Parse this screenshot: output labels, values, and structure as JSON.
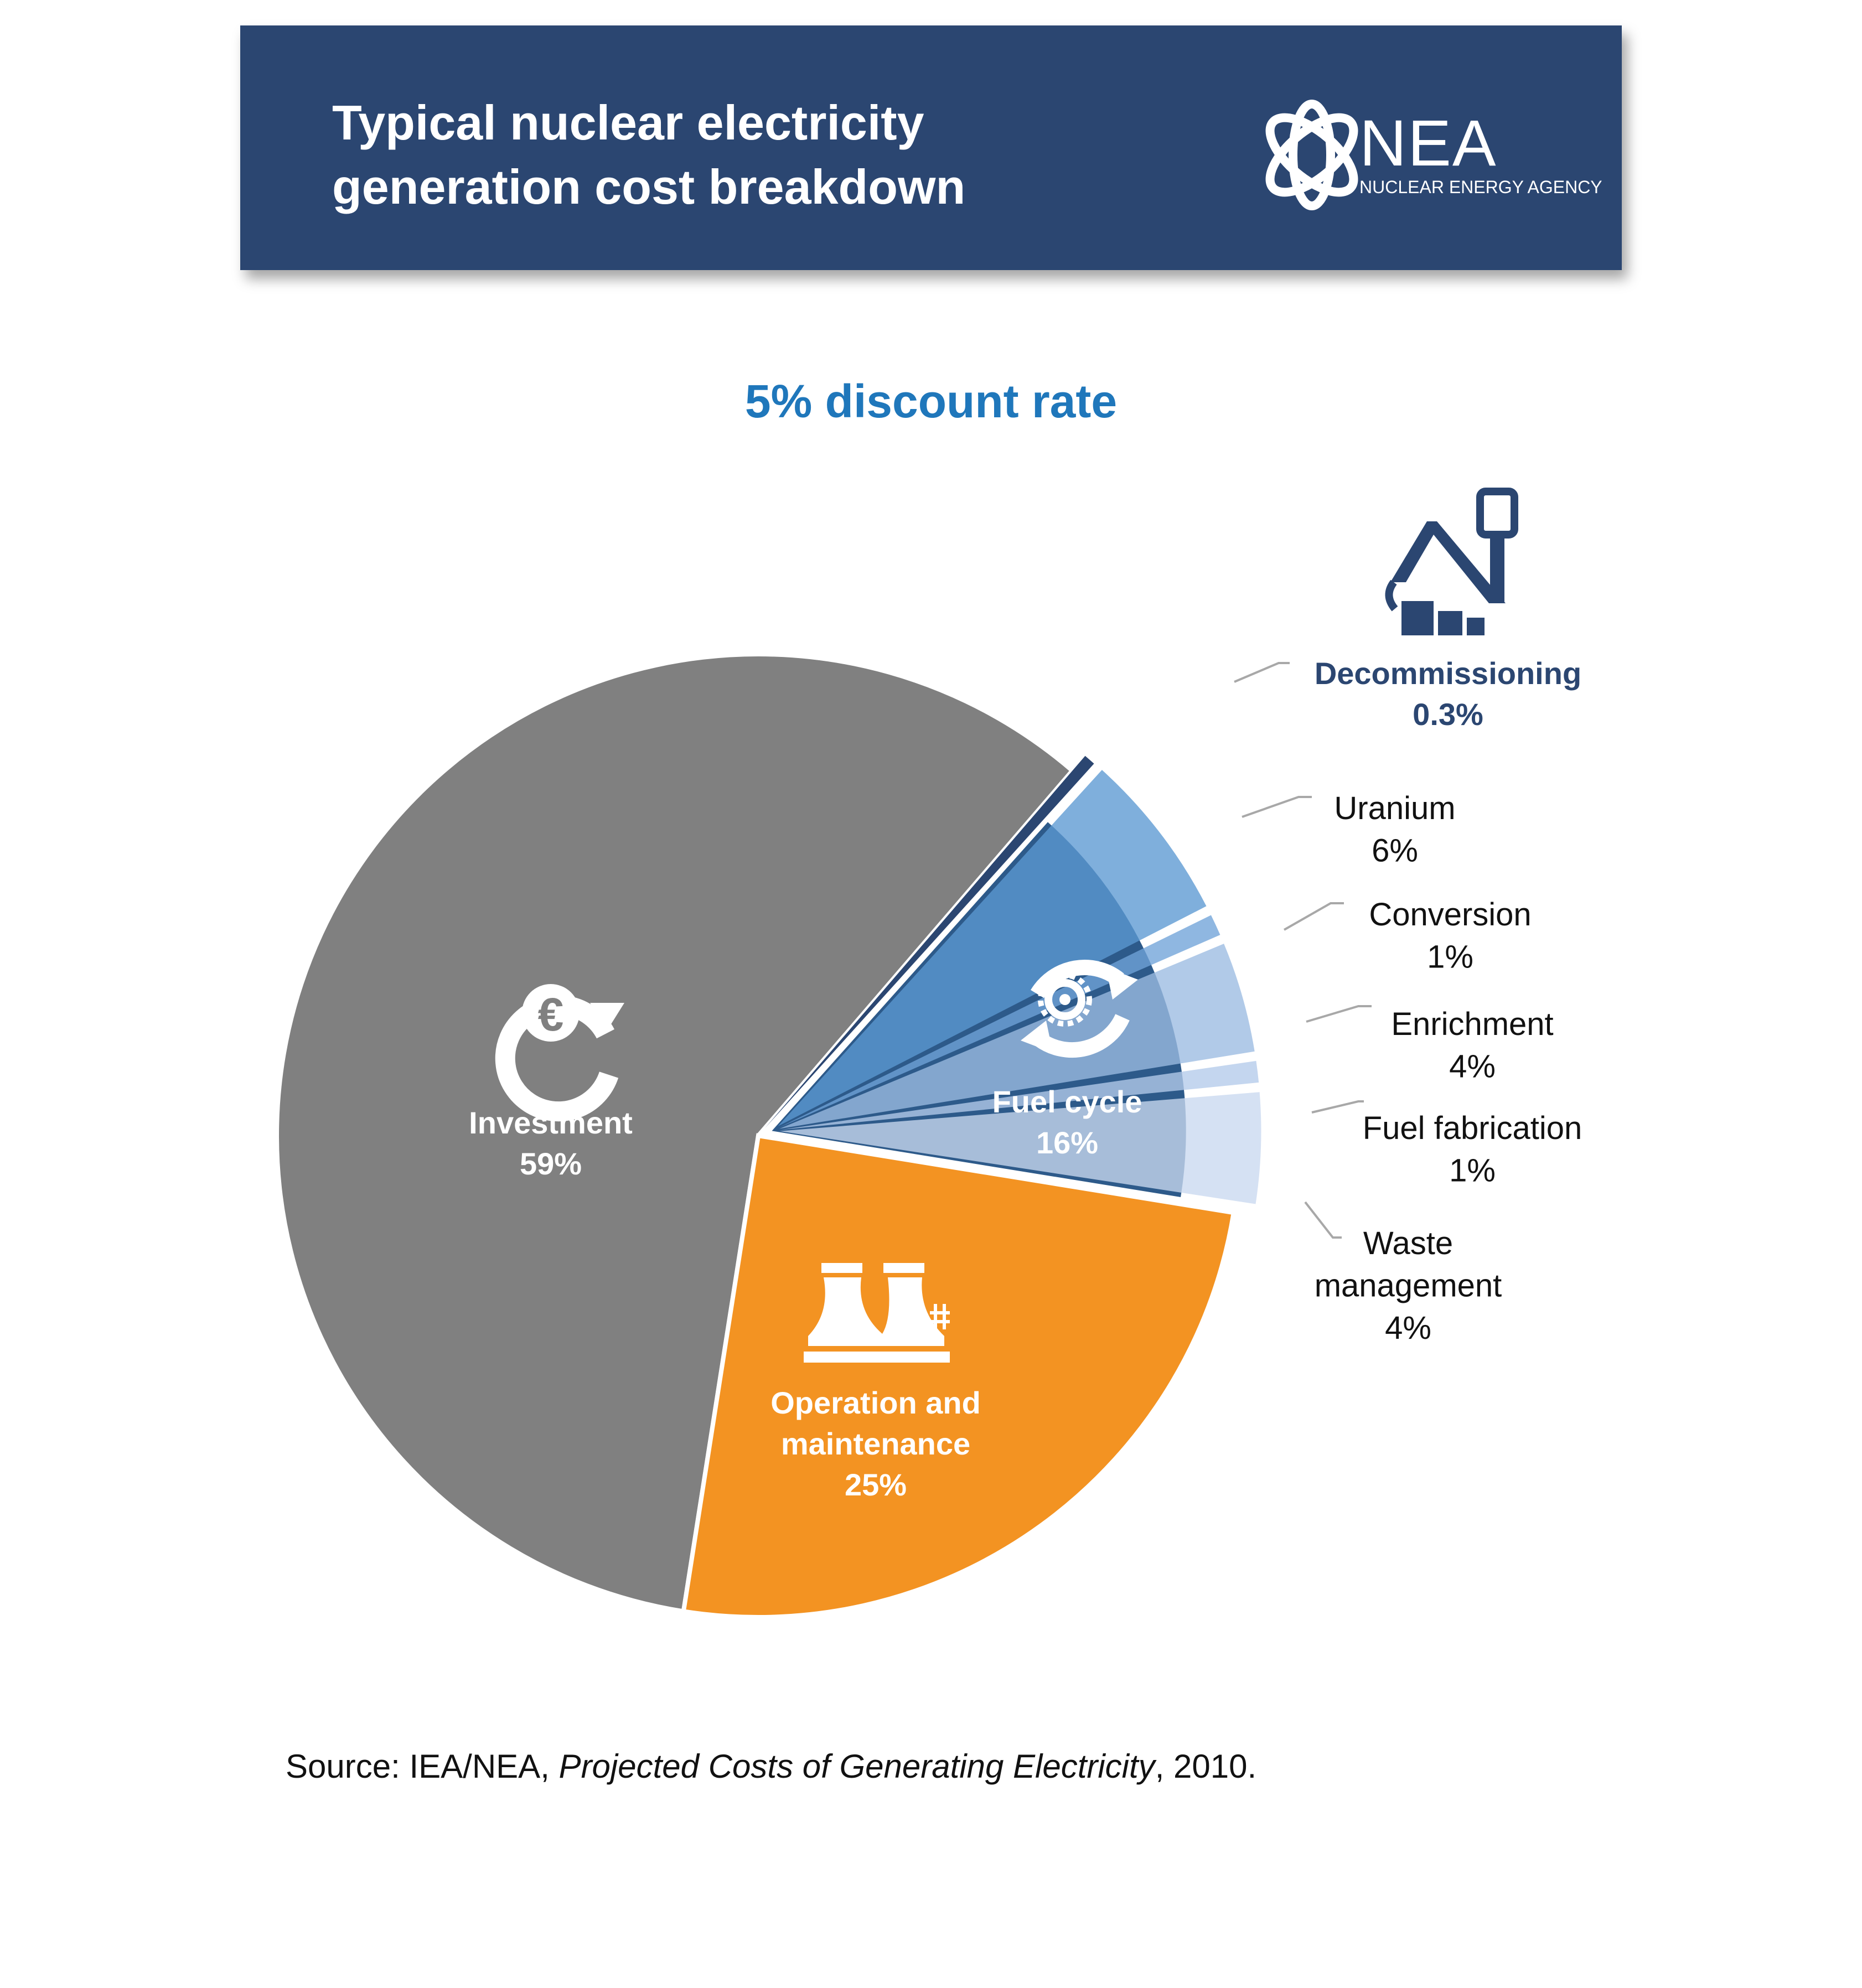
{
  "header": {
    "title_line1": "Typical nuclear electricity",
    "title_line2": "generation cost breakdown",
    "logo_name": "NEA",
    "logo_subtitle": "NUCLEAR ENERGY AGENCY"
  },
  "subtitle": "5% discount rate",
  "source": {
    "prefix": "Source: IEA/NEA, ",
    "publication": "Projected Costs of Generating Electricity",
    "suffix": ", 2010."
  },
  "colors": {
    "banner": "#2b4671",
    "investment": "#808080",
    "operation": "#f39322",
    "fuel_cycle": "#2d5a8a",
    "decommissioning": "#2b4671",
    "subtitle": "#1f77bb",
    "uranium": "#5b99d2",
    "conversion": "#6fa3d8",
    "enrichment": "#9bbbe2",
    "fuel_fabrication": "#b4cbea",
    "waste_management": "#c9d9ef"
  },
  "chart_data": {
    "type": "pie",
    "title": "5% discount rate",
    "series": [
      {
        "key": "investment",
        "label_lines": [
          "Investment",
          "59%"
        ],
        "value": 59,
        "icon": "euro-cycle-icon"
      },
      {
        "key": "operation",
        "label_lines": [
          "Operation and",
          "maintenance",
          "25%"
        ],
        "value": 25,
        "icon": "cooling-towers-icon"
      },
      {
        "key": "fuel_cycle",
        "label_lines": [
          "Fuel cycle",
          "16%"
        ],
        "value": 16,
        "icon": "gear-cycle-icon"
      },
      {
        "key": "decommissioning",
        "label_lines": [
          "Decommissioning",
          "0.3%"
        ],
        "value": 0.3,
        "icon": "crane-demolition-icon"
      }
    ],
    "fuel_cycle_breakdown": [
      {
        "key": "uranium",
        "label_lines": [
          "Uranium",
          "6%"
        ],
        "value": 6
      },
      {
        "key": "conversion",
        "label_lines": [
          "Conversion",
          "1%"
        ],
        "value": 1
      },
      {
        "key": "enrichment",
        "label_lines": [
          "Enrichment",
          "4%"
        ],
        "value": 4
      },
      {
        "key": "fuel_fabrication",
        "label_lines": [
          "Fuel fabrication",
          "1%"
        ],
        "value": 1
      },
      {
        "key": "waste_management",
        "label_lines": [
          "Waste",
          "management",
          "4%"
        ],
        "value": 4
      }
    ]
  }
}
